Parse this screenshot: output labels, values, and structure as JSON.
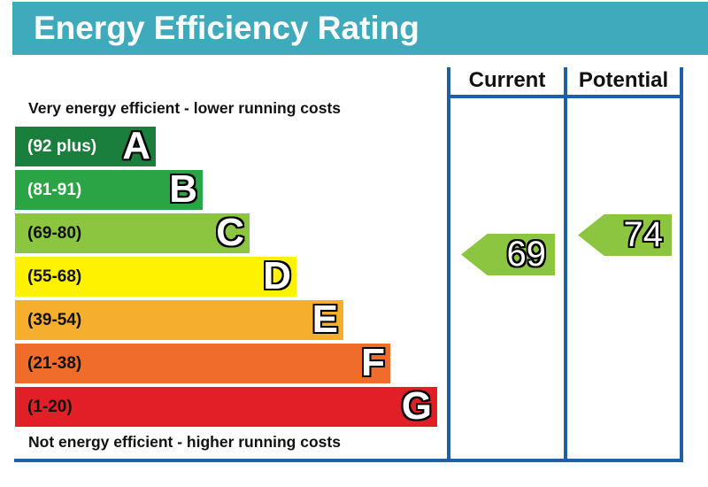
{
  "title": "Energy Efficiency Rating",
  "top_caption": "Very energy efficient - lower running costs",
  "bottom_caption": "Not energy efficient - higher running costs",
  "columns": {
    "current": "Current",
    "potential": "Potential"
  },
  "bands": [
    {
      "letter": "A",
      "range": "(92 plus)",
      "color": "#1a7f3c",
      "text_color": "#ffffff"
    },
    {
      "letter": "B",
      "range": "(81-91)",
      "color": "#2aa444",
      "text_color": "#ffffff"
    },
    {
      "letter": "C",
      "range": "(69-80)",
      "color": "#8cc540",
      "text_color": "#111111"
    },
    {
      "letter": "D",
      "range": "(55-68)",
      "color": "#fff200",
      "text_color": "#111111"
    },
    {
      "letter": "E",
      "range": "(39-54)",
      "color": "#f6ae2e",
      "text_color": "#111111"
    },
    {
      "letter": "F",
      "range": "(21-38)",
      "color": "#ef6c2a",
      "text_color": "#111111"
    },
    {
      "letter": "G",
      "range": "(1-20)",
      "color": "#e21f26",
      "text_color": "#111111"
    }
  ],
  "ratings": {
    "current": {
      "value": "69",
      "band": "C",
      "color": "#8cc540"
    },
    "potential": {
      "value": "74",
      "band": "C",
      "color": "#8cc540"
    }
  }
}
